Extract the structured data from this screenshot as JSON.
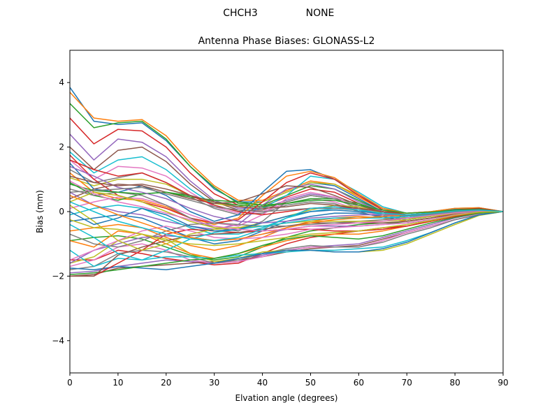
{
  "suptitle": {
    "left": "CHCH3",
    "right": "NONE"
  },
  "chart_data": {
    "type": "line",
    "title": "Antenna Phase Biases: GLONASS-L2",
    "xlabel": "Elvation angle (degrees)",
    "ylabel": "Bias (mm)",
    "xlim": [
      0,
      90
    ],
    "ylim": [
      -5,
      5
    ],
    "xticks": [
      0,
      10,
      20,
      30,
      40,
      50,
      60,
      70,
      80,
      90
    ],
    "xtick_labels": [
      "0",
      "10",
      "20",
      "30",
      "40",
      "50",
      "60",
      "70",
      "80",
      "90"
    ],
    "yticks": [
      -4,
      -2,
      0,
      2,
      4
    ],
    "ytick_labels": [
      "−4",
      "−2",
      "0",
      "2",
      "4"
    ],
    "grid": false,
    "legend": "none",
    "x": [
      0,
      5,
      10,
      15,
      20,
      25,
      30,
      35,
      40,
      45,
      50,
      55,
      60,
      65,
      70,
      75,
      80,
      85,
      90
    ],
    "series": [
      {
        "color": "#1f77b4",
        "values": [
          3.85,
          2.8,
          2.7,
          2.75,
          2.2,
          1.4,
          0.7,
          0.3,
          0.3,
          0.6,
          0.9,
          0.8,
          0.4,
          0.0,
          -0.2,
          -0.1,
          0.05,
          0.1,
          0.0
        ]
      },
      {
        "color": "#ff7f0e",
        "values": [
          3.7,
          2.9,
          2.8,
          2.85,
          2.35,
          1.5,
          0.8,
          0.35,
          0.35,
          0.65,
          0.95,
          0.85,
          0.45,
          0.05,
          -0.15,
          -0.05,
          0.1,
          0.12,
          0.0
        ]
      },
      {
        "color": "#2ca02c",
        "values": [
          3.35,
          2.6,
          2.75,
          2.8,
          2.25,
          1.4,
          0.75,
          0.25,
          0.2,
          0.5,
          0.8,
          0.7,
          0.35,
          0.0,
          -0.2,
          -0.1,
          0.05,
          0.1,
          0.0
        ]
      },
      {
        "color": "#d62728",
        "values": [
          2.9,
          2.1,
          2.55,
          2.5,
          2.0,
          1.2,
          0.55,
          0.2,
          0.15,
          0.45,
          0.7,
          0.6,
          0.25,
          -0.05,
          -0.2,
          -0.12,
          0.03,
          0.08,
          0.0
        ]
      },
      {
        "color": "#9467bd",
        "values": [
          2.4,
          1.6,
          2.25,
          2.15,
          1.7,
          0.95,
          0.35,
          0.1,
          0.1,
          0.35,
          0.55,
          0.45,
          0.15,
          -0.1,
          -0.25,
          -0.15,
          0.0,
          0.05,
          0.0
        ]
      },
      {
        "color": "#8c564b",
        "values": [
          2.0,
          1.3,
          1.9,
          2.0,
          1.55,
          0.85,
          0.3,
          0.05,
          0.05,
          0.3,
          0.5,
          0.4,
          0.1,
          -0.1,
          -0.25,
          -0.15,
          0.0,
          0.05,
          0.0
        ]
      },
      {
        "color": "#e377c2",
        "values": [
          1.6,
          1.0,
          1.4,
          1.35,
          1.1,
          0.6,
          0.15,
          -0.05,
          0.0,
          0.25,
          0.4,
          0.3,
          0.05,
          -0.15,
          -0.3,
          -0.2,
          -0.05,
          0.02,
          0.0
        ]
      },
      {
        "color": "#7f7f7f",
        "values": [
          1.3,
          0.9,
          1.05,
          1.2,
          0.9,
          0.45,
          0.1,
          -0.1,
          -0.05,
          0.2,
          0.3,
          0.25,
          0.0,
          -0.2,
          -0.3,
          -0.2,
          -0.05,
          0.0,
          0.0
        ]
      },
      {
        "color": "#bcbd22",
        "values": [
          1.05,
          0.8,
          1.0,
          1.0,
          0.85,
          0.5,
          0.25,
          0.15,
          0.3,
          0.6,
          0.9,
          0.85,
          0.5,
          0.1,
          -0.1,
          -0.05,
          0.05,
          0.1,
          0.0
        ]
      },
      {
        "color": "#17becf",
        "values": [
          1.85,
          1.2,
          1.6,
          1.7,
          1.3,
          0.7,
          0.2,
          0.0,
          0.1,
          0.5,
          1.1,
          1.0,
          0.6,
          0.15,
          -0.05,
          0.0,
          0.1,
          0.12,
          0.0
        ]
      },
      {
        "color": "#1f77b4",
        "values": [
          1.5,
          0.7,
          0.6,
          0.8,
          0.5,
          0.0,
          -0.3,
          -0.1,
          0.6,
          1.25,
          1.3,
          1.0,
          0.5,
          0.1,
          -0.05,
          0.0,
          0.08,
          0.1,
          0.0
        ]
      },
      {
        "color": "#ff7f0e",
        "values": [
          1.2,
          0.6,
          0.4,
          0.35,
          0.15,
          -0.2,
          -0.4,
          -0.2,
          0.5,
          1.1,
          1.25,
          1.05,
          0.55,
          0.1,
          -0.05,
          0.0,
          0.1,
          0.12,
          0.0
        ]
      },
      {
        "color": "#2ca02c",
        "values": [
          0.9,
          0.5,
          0.35,
          0.55,
          0.6,
          0.5,
          0.3,
          0.2,
          0.15,
          0.25,
          0.4,
          0.4,
          0.25,
          0.0,
          -0.15,
          -0.1,
          0.0,
          0.05,
          0.0
        ]
      },
      {
        "color": "#d62728",
        "values": [
          1.75,
          1.0,
          0.5,
          0.3,
          0.1,
          -0.2,
          -0.35,
          -0.25,
          0.3,
          0.9,
          1.2,
          1.0,
          0.5,
          0.05,
          -0.1,
          -0.05,
          0.05,
          0.1,
          0.0
        ]
      },
      {
        "color": "#9467bd",
        "values": [
          0.6,
          0.2,
          0.0,
          -0.1,
          -0.3,
          -0.45,
          -0.55,
          -0.4,
          0.2,
          0.7,
          0.85,
          0.7,
          0.3,
          0.0,
          -0.15,
          -0.1,
          0.0,
          0.05,
          0.0
        ]
      },
      {
        "color": "#8c564b",
        "values": [
          0.4,
          0.7,
          0.85,
          0.8,
          0.6,
          0.4,
          0.25,
          0.3,
          0.55,
          0.8,
          0.75,
          0.5,
          0.2,
          -0.05,
          -0.2,
          -0.15,
          0.0,
          0.05,
          0.0
        ]
      },
      {
        "color": "#e377c2",
        "values": [
          0.1,
          0.3,
          0.45,
          0.4,
          0.2,
          -0.1,
          -0.35,
          -0.45,
          -0.1,
          0.4,
          0.6,
          0.45,
          0.15,
          -0.1,
          -0.2,
          -0.15,
          -0.02,
          0.03,
          0.0
        ]
      },
      {
        "color": "#7f7f7f",
        "values": [
          0.7,
          0.5,
          0.6,
          0.5,
          0.2,
          -0.2,
          -0.5,
          -0.6,
          -0.3,
          0.3,
          0.5,
          0.4,
          0.1,
          -0.1,
          -0.25,
          -0.15,
          0.0,
          0.05,
          0.0
        ]
      },
      {
        "color": "#bcbd22",
        "values": [
          0.3,
          0.6,
          0.5,
          0.3,
          0.0,
          -0.3,
          -0.5,
          -0.5,
          -0.35,
          -0.15,
          0.05,
          0.2,
          0.15,
          -0.05,
          -0.2,
          -0.15,
          0.0,
          0.05,
          0.0
        ]
      },
      {
        "color": "#17becf",
        "values": [
          -0.1,
          0.1,
          0.2,
          0.1,
          -0.2,
          -0.5,
          -0.7,
          -0.7,
          -0.5,
          -0.2,
          0.0,
          0.1,
          0.05,
          -0.1,
          -0.25,
          -0.15,
          0.0,
          0.05,
          0.0
        ]
      },
      {
        "color": "#1f77b4",
        "values": [
          -0.3,
          -0.2,
          -0.1,
          -0.2,
          -0.5,
          -0.8,
          -1.0,
          -0.9,
          -0.6,
          -0.3,
          -0.15,
          -0.05,
          -0.05,
          -0.15,
          -0.3,
          -0.2,
          -0.05,
          0.02,
          0.0
        ]
      },
      {
        "color": "#ff7f0e",
        "values": [
          -0.6,
          -0.5,
          -0.4,
          -0.5,
          -0.8,
          -1.05,
          -1.2,
          -1.05,
          -0.8,
          -0.5,
          -0.3,
          -0.2,
          -0.15,
          -0.2,
          -0.3,
          -0.2,
          -0.05,
          0.02,
          0.0
        ]
      },
      {
        "color": "#2ca02c",
        "values": [
          -0.9,
          -0.8,
          -0.75,
          -0.85,
          -1.1,
          -1.35,
          -1.5,
          -1.4,
          -1.1,
          -0.8,
          -0.6,
          -0.5,
          -0.4,
          -0.35,
          -0.35,
          -0.25,
          -0.1,
          0.0,
          0.0
        ]
      },
      {
        "color": "#d62728",
        "values": [
          -1.5,
          -1.5,
          -1.2,
          -1.3,
          -1.45,
          -1.55,
          -1.65,
          -1.6,
          -1.3,
          -1.0,
          -0.8,
          -0.7,
          -0.6,
          -0.5,
          -0.45,
          -0.3,
          -0.15,
          -0.02,
          0.0
        ]
      },
      {
        "color": "#9467bd",
        "values": [
          -1.9,
          -1.85,
          -1.7,
          -1.6,
          -1.5,
          -1.55,
          -1.6,
          -1.55,
          -1.35,
          -1.2,
          -1.1,
          -1.05,
          -1.0,
          -0.8,
          -0.6,
          -0.4,
          -0.2,
          -0.05,
          0.0
        ]
      },
      {
        "color": "#8c564b",
        "values": [
          -2.0,
          -1.95,
          -1.75,
          -1.7,
          -1.65,
          -1.6,
          -1.55,
          -1.5,
          -1.4,
          -1.25,
          -1.15,
          -1.1,
          -1.05,
          -0.85,
          -0.65,
          -0.45,
          -0.25,
          -0.08,
          0.0
        ]
      },
      {
        "color": "#e377c2",
        "values": [
          -1.7,
          -1.5,
          -1.1,
          -1.0,
          -1.2,
          -1.5,
          -1.6,
          -1.55,
          -1.4,
          -1.2,
          -1.1,
          -1.1,
          -1.1,
          -0.9,
          -0.65,
          -0.45,
          -0.25,
          -0.08,
          0.0
        ]
      },
      {
        "color": "#7f7f7f",
        "values": [
          -1.8,
          -1.7,
          -1.3,
          -1.2,
          -1.25,
          -1.4,
          -1.6,
          -1.5,
          -1.3,
          -1.15,
          -1.05,
          -1.1,
          -1.1,
          -0.95,
          -0.7,
          -0.5,
          -0.25,
          -0.1,
          0.0
        ]
      },
      {
        "color": "#bcbd22",
        "values": [
          -1.6,
          -1.4,
          -0.9,
          -0.7,
          -0.85,
          -1.3,
          -1.55,
          -1.45,
          -1.25,
          -1.2,
          -1.2,
          -1.25,
          -1.25,
          -1.2,
          -1.0,
          -0.7,
          -0.4,
          -0.12,
          0.0
        ]
      },
      {
        "color": "#17becf",
        "values": [
          -1.2,
          -1.7,
          -1.45,
          -1.5,
          -1.4,
          -1.4,
          -1.45,
          -1.35,
          -1.3,
          -1.25,
          -1.2,
          -1.2,
          -1.15,
          -1.1,
          -0.9,
          -0.65,
          -0.35,
          -0.1,
          0.0
        ]
      },
      {
        "color": "#1f77b4",
        "values": [
          -1.75,
          -1.8,
          -1.7,
          -1.75,
          -1.8,
          -1.7,
          -1.6,
          -1.45,
          -1.3,
          -1.2,
          -1.2,
          -1.25,
          -1.25,
          -1.15,
          -0.95,
          -0.65,
          -0.35,
          -0.1,
          0.0
        ]
      },
      {
        "color": "#ff7f0e",
        "values": [
          -0.9,
          -1.1,
          -0.6,
          -0.7,
          -1.0,
          -1.3,
          -1.45,
          -1.3,
          -1.1,
          -0.9,
          -0.75,
          -0.7,
          -0.7,
          -0.6,
          -0.45,
          -0.3,
          -0.15,
          -0.02,
          0.0
        ]
      },
      {
        "color": "#2ca02c",
        "values": [
          -1.95,
          -1.9,
          -1.8,
          -1.7,
          -1.6,
          -1.5,
          -1.45,
          -1.3,
          -1.05,
          -0.85,
          -0.75,
          -0.8,
          -0.85,
          -0.75,
          -0.55,
          -0.35,
          -0.18,
          -0.05,
          0.0
        ]
      },
      {
        "color": "#d62728",
        "values": [
          -2.0,
          -2.0,
          -1.6,
          -1.2,
          -0.7,
          -0.55,
          -0.6,
          -0.65,
          -0.6,
          -0.55,
          -0.55,
          -0.6,
          -0.6,
          -0.55,
          -0.45,
          -0.3,
          -0.15,
          -0.02,
          0.0
        ]
      },
      {
        "color": "#9467bd",
        "values": [
          -1.6,
          -1.2,
          -1.0,
          -0.8,
          -0.75,
          -0.8,
          -0.9,
          -0.85,
          -0.7,
          -0.55,
          -0.45,
          -0.45,
          -0.45,
          -0.4,
          -0.35,
          -0.25,
          -0.1,
          0.0,
          0.0
        ]
      },
      {
        "color": "#8c564b",
        "values": [
          -2.0,
          -2.0,
          -1.35,
          -1.1,
          -0.9,
          -0.75,
          -0.7,
          -0.65,
          -0.55,
          -0.45,
          -0.35,
          -0.35,
          -0.35,
          -0.35,
          -0.3,
          -0.2,
          -0.08,
          0.0,
          0.0
        ]
      },
      {
        "color": "#e377c2",
        "values": [
          -1.5,
          -1.2,
          -0.9,
          -0.6,
          -0.45,
          -0.6,
          -0.8,
          -0.85,
          -0.8,
          -0.7,
          -0.55,
          -0.5,
          -0.45,
          -0.4,
          -0.35,
          -0.25,
          -0.1,
          0.0,
          0.0
        ]
      },
      {
        "color": "#7f7f7f",
        "values": [
          -0.7,
          -1.0,
          -1.1,
          -0.9,
          -0.6,
          -0.4,
          -0.35,
          -0.4,
          -0.45,
          -0.45,
          -0.4,
          -0.35,
          -0.3,
          -0.25,
          -0.2,
          -0.12,
          -0.05,
          0.0,
          0.0
        ]
      },
      {
        "color": "#bcbd22",
        "values": [
          0.2,
          -0.3,
          -0.9,
          -1.2,
          -1.0,
          -0.7,
          -0.55,
          -0.5,
          -0.45,
          -0.35,
          -0.3,
          -0.3,
          -0.3,
          -0.3,
          -0.25,
          -0.15,
          -0.05,
          0.02,
          0.0
        ]
      },
      {
        "color": "#17becf",
        "values": [
          -0.4,
          -0.8,
          -1.3,
          -1.5,
          -1.2,
          -0.85,
          -0.65,
          -0.55,
          -0.45,
          -0.35,
          -0.25,
          -0.2,
          -0.2,
          -0.2,
          -0.15,
          -0.1,
          -0.03,
          0.02,
          0.0
        ]
      },
      {
        "color": "#1f77b4",
        "values": [
          0.0,
          -0.4,
          -0.2,
          0.1,
          -0.1,
          -0.45,
          -0.6,
          -0.55,
          -0.35,
          -0.15,
          0.0,
          0.05,
          0.0,
          -0.05,
          -0.1,
          -0.05,
          0.0,
          0.03,
          0.0
        ]
      },
      {
        "color": "#ff7f0e",
        "values": [
          0.5,
          0.2,
          -0.1,
          -0.35,
          -0.6,
          -0.8,
          -0.9,
          -0.85,
          -0.7,
          -0.5,
          -0.35,
          -0.25,
          -0.2,
          -0.15,
          -0.1,
          -0.05,
          0.0,
          0.03,
          0.0
        ]
      },
      {
        "color": "#2ca02c",
        "values": [
          0.85,
          0.65,
          0.6,
          0.55,
          0.6,
          0.45,
          0.35,
          0.3,
          0.2,
          0.25,
          0.35,
          0.35,
          0.2,
          0.05,
          -0.05,
          -0.02,
          0.05,
          0.08,
          0.0
        ]
      },
      {
        "color": "#d62728",
        "values": [
          1.6,
          1.3,
          1.1,
          1.2,
          0.9,
          0.5,
          0.2,
          0.0,
          -0.1,
          0.0,
          0.1,
          0.15,
          0.1,
          0.0,
          -0.1,
          -0.05,
          0.02,
          0.06,
          0.0
        ]
      },
      {
        "color": "#9467bd",
        "values": [
          1.4,
          1.1,
          0.75,
          0.6,
          0.4,
          0.1,
          -0.15,
          -0.3,
          -0.35,
          -0.3,
          -0.2,
          -0.15,
          -0.1,
          -0.1,
          -0.1,
          -0.05,
          0.0,
          0.03,
          0.0
        ]
      },
      {
        "color": "#8c564b",
        "values": [
          1.1,
          0.9,
          0.8,
          0.85,
          0.7,
          0.5,
          0.3,
          0.15,
          0.1,
          0.15,
          0.25,
          0.2,
          0.1,
          0.0,
          -0.1,
          -0.05,
          0.02,
          0.06,
          0.0
        ]
      },
      {
        "color": "#e377c2",
        "values": [
          0.95,
          0.55,
          0.3,
          0.15,
          -0.05,
          -0.25,
          -0.45,
          -0.55,
          -0.6,
          -0.55,
          -0.45,
          -0.4,
          -0.35,
          -0.3,
          -0.2,
          -0.12,
          -0.04,
          0.02,
          0.0
        ]
      },
      {
        "color": "#7f7f7f",
        "values": [
          0.6,
          0.65,
          0.7,
          0.75,
          0.55,
          0.35,
          0.15,
          0.05,
          0.0,
          0.05,
          0.1,
          0.1,
          0.05,
          -0.05,
          -0.12,
          -0.08,
          0.0,
          0.04,
          0.0
        ]
      },
      {
        "color": "#bcbd22",
        "values": [
          -0.25,
          -0.5,
          -0.55,
          -0.7,
          -0.9,
          -1.0,
          -1.05,
          -1.0,
          -0.9,
          -0.8,
          -0.7,
          -0.65,
          -0.6,
          -0.5,
          -0.4,
          -0.28,
          -0.12,
          -0.02,
          0.0
        ]
      },
      {
        "color": "#17becf",
        "values": [
          0.3,
          0.0,
          -0.3,
          -0.5,
          -0.7,
          -0.85,
          -0.9,
          -0.8,
          -0.55,
          -0.2,
          0.1,
          0.15,
          0.05,
          -0.05,
          -0.1,
          -0.05,
          0.02,
          0.05,
          0.0
        ]
      }
    ]
  }
}
